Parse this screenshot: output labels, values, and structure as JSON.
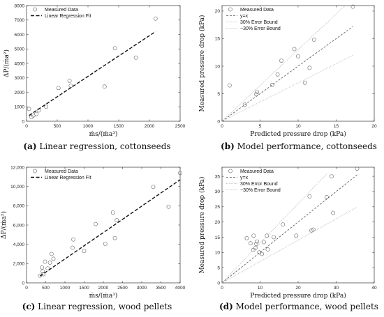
{
  "chart_data": [
    {
      "id": "a",
      "type": "scatter",
      "caption_label": "(a)",
      "caption_text": "Linear regression, cottonseeds",
      "xlabel": "ṁs/(ṁa³)",
      "ylabel": "ΔP/(ṁa²)",
      "xlim": [
        0,
        2500
      ],
      "ylim": [
        0,
        8000
      ],
      "xticks": [
        0,
        500,
        1000,
        1500,
        2000,
        2500
      ],
      "xtick_labels": [
        "0",
        "500",
        "1000",
        "1500",
        "2000",
        "2500"
      ],
      "yticks": [
        0,
        1000,
        2000,
        3000,
        4000,
        5000,
        6000,
        7000,
        8000
      ],
      "ytick_labels": [
        "0",
        "1000",
        "2000",
        "3000",
        "4000",
        "5000",
        "6000",
        "7000",
        "8000"
      ],
      "grid": false,
      "legend_position": "top-left",
      "series": [
        {
          "name": "Measured Data",
          "style": "markers",
          "x": [
            40,
            80,
            110,
            160,
            200,
            320,
            520,
            700,
            720,
            1270,
            1440,
            1780,
            2100
          ],
          "y": [
            850,
            300,
            400,
            500,
            750,
            1000,
            2300,
            2800,
            2450,
            2400,
            5050,
            4400,
            7100
          ]
        },
        {
          "name": "Linear Regression Fit",
          "style": "dashed",
          "x": [
            40,
            2100
          ],
          "y": [
            400,
            6200
          ]
        }
      ]
    },
    {
      "id": "b",
      "type": "scatter",
      "caption_label": "(b)",
      "caption_text": "Model performance, cottonseeds",
      "xlabel": "Predicted pressure drop (kPa)",
      "ylabel": "Measured pressure drop (kPa)",
      "xlim": [
        0,
        20
      ],
      "ylim": [
        0,
        21
      ],
      "xticks": [
        0,
        5,
        10,
        15,
        20
      ],
      "xtick_labels": [
        "0",
        "5",
        "10",
        "15",
        "20"
      ],
      "yticks": [
        0,
        5,
        10,
        15,
        20
      ],
      "ytick_labels": [
        "0",
        "5",
        "10",
        "15",
        "20"
      ],
      "grid": false,
      "legend_position": "top-left",
      "series": [
        {
          "name": "Measured Data",
          "style": "markers",
          "x": [
            1.0,
            3.0,
            4.5,
            4.6,
            6.6,
            7.3,
            7.8,
            9.5,
            10.0,
            10.9,
            11.5,
            12.1,
            17.2
          ],
          "y": [
            6.5,
            3.0,
            4.9,
            5.3,
            6.6,
            8.5,
            11.0,
            13.1,
            11.8,
            7.0,
            9.7,
            14.8,
            20.8
          ]
        },
        {
          "name": "y=x",
          "style": "dashed",
          "x": [
            0,
            17.2
          ],
          "y": [
            0,
            17.2
          ]
        },
        {
          "name": "30% Error Bound",
          "style": "dotted",
          "x": [
            0,
            16.1
          ],
          "y": [
            0,
            20.9
          ]
        },
        {
          "name": "−30% Error Bound",
          "style": "dotted",
          "x": [
            0,
            17.2
          ],
          "y": [
            0,
            12.0
          ]
        }
      ]
    },
    {
      "id": "c",
      "type": "scatter",
      "caption_label": "(c)",
      "caption_text": "Linear regression, wood pellets",
      "xlabel": "ṁs/(ṁa³)",
      "ylabel": "ΔP/(ṁa²)",
      "xlim": [
        0,
        4000
      ],
      "ylim": [
        0,
        12000
      ],
      "xticks": [
        0,
        500,
        1000,
        1500,
        2000,
        2500,
        3000,
        3500,
        4000
      ],
      "xtick_labels": [
        "0",
        "500",
        "1000",
        "1500",
        "2000",
        "2500",
        "3000",
        "3500",
        "4000"
      ],
      "yticks": [
        0,
        2000,
        4000,
        6000,
        8000,
        10000,
        12000
      ],
      "ytick_labels": [
        "0",
        "2,000",
        "4,000",
        "6,000",
        "8,000",
        "10,000",
        "12,000"
      ],
      "grid": false,
      "legend_position": "top-left",
      "series": [
        {
          "name": "Measured Data",
          "style": "markers",
          "x": [
            350,
            400,
            420,
            440,
            480,
            550,
            610,
            650,
            700,
            1200,
            1220,
            1500,
            1800,
            2050,
            2250,
            2300,
            2350,
            3300,
            3700,
            4000
          ],
          "y": [
            750,
            1600,
            1200,
            900,
            2200,
            1500,
            2100,
            3000,
            2500,
            3650,
            4500,
            3300,
            6100,
            4050,
            7300,
            4650,
            6500,
            9950,
            7900,
            11400
          ]
        },
        {
          "name": "Linear Regression Fit",
          "style": "dashed",
          "x": [
            350,
            4000
          ],
          "y": [
            700,
            10700
          ]
        }
      ]
    },
    {
      "id": "d",
      "type": "scatter",
      "caption_label": "(d)",
      "caption_text": "Model performance, wood pellets",
      "xlabel": "Predicted pressure drop (kPa)",
      "ylabel": "Measured pressure drop (kPa)",
      "xlim": [
        0,
        40
      ],
      "ylim": [
        0,
        38
      ],
      "xticks": [
        0,
        10,
        20,
        30,
        40
      ],
      "xtick_labels": [
        "0",
        "10",
        "20",
        "30",
        "40"
      ],
      "yticks": [
        0,
        5,
        10,
        15,
        20,
        25,
        30,
        35
      ],
      "ytick_labels": [
        "0",
        "5",
        "10",
        "15",
        "20",
        "25",
        "30",
        "35"
      ],
      "grid": false,
      "legend_position": "top-left",
      "series": [
        {
          "name": "Measured Data",
          "style": "markers",
          "x": [
            6.5,
            7.5,
            8.2,
            8.3,
            8.8,
            9.0,
            9.2,
            9.8,
            10.5,
            11.0,
            11.8,
            12.0,
            13.6,
            16.0,
            19.5,
            23.0,
            23.5,
            24.0,
            27.5,
            28.8,
            29.2,
            35.5
          ],
          "y": [
            14.7,
            13.0,
            10.8,
            15.5,
            11.5,
            12.8,
            13.6,
            10.0,
            9.5,
            13.4,
            15.5,
            11.0,
            15.0,
            19.2,
            15.5,
            28.4,
            17.2,
            17.5,
            28.2,
            35.0,
            23.0,
            37.5
          ]
        },
        {
          "name": "y=x",
          "style": "dashed",
          "x": [
            0,
            35.5
          ],
          "y": [
            0,
            35.5
          ]
        },
        {
          "name": "30% Error Bound",
          "style": "dotted",
          "x": [
            0,
            27.5
          ],
          "y": [
            0,
            35.8
          ]
        },
        {
          "name": "−30% Error Bound",
          "style": "dotted",
          "x": [
            0,
            35.5
          ],
          "y": [
            0,
            24.9
          ]
        }
      ]
    }
  ]
}
